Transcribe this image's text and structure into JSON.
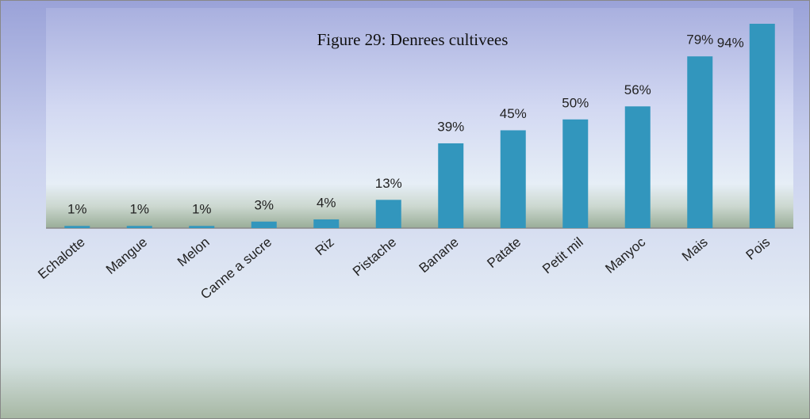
{
  "chart_data": {
    "type": "bar",
    "title": "Figure 29: Denrees cultivees",
    "categories": [
      "Echalotte",
      "Mangue",
      "Melon",
      "Canne a sucre",
      "Riz",
      "Pistache",
      "Banane",
      "Patate",
      "Petit mil",
      "Manyoc",
      "Mais",
      "Pois"
    ],
    "values": [
      1,
      1,
      1,
      3,
      4,
      13,
      39,
      45,
      50,
      56,
      79,
      94
    ],
    "value_labels": [
      "1%",
      "1%",
      "1%",
      "3%",
      "4%",
      "13%",
      "39%",
      "45%",
      "50%",
      "56%",
      "79%",
      "94%"
    ],
    "color": "#3296bd"
  }
}
